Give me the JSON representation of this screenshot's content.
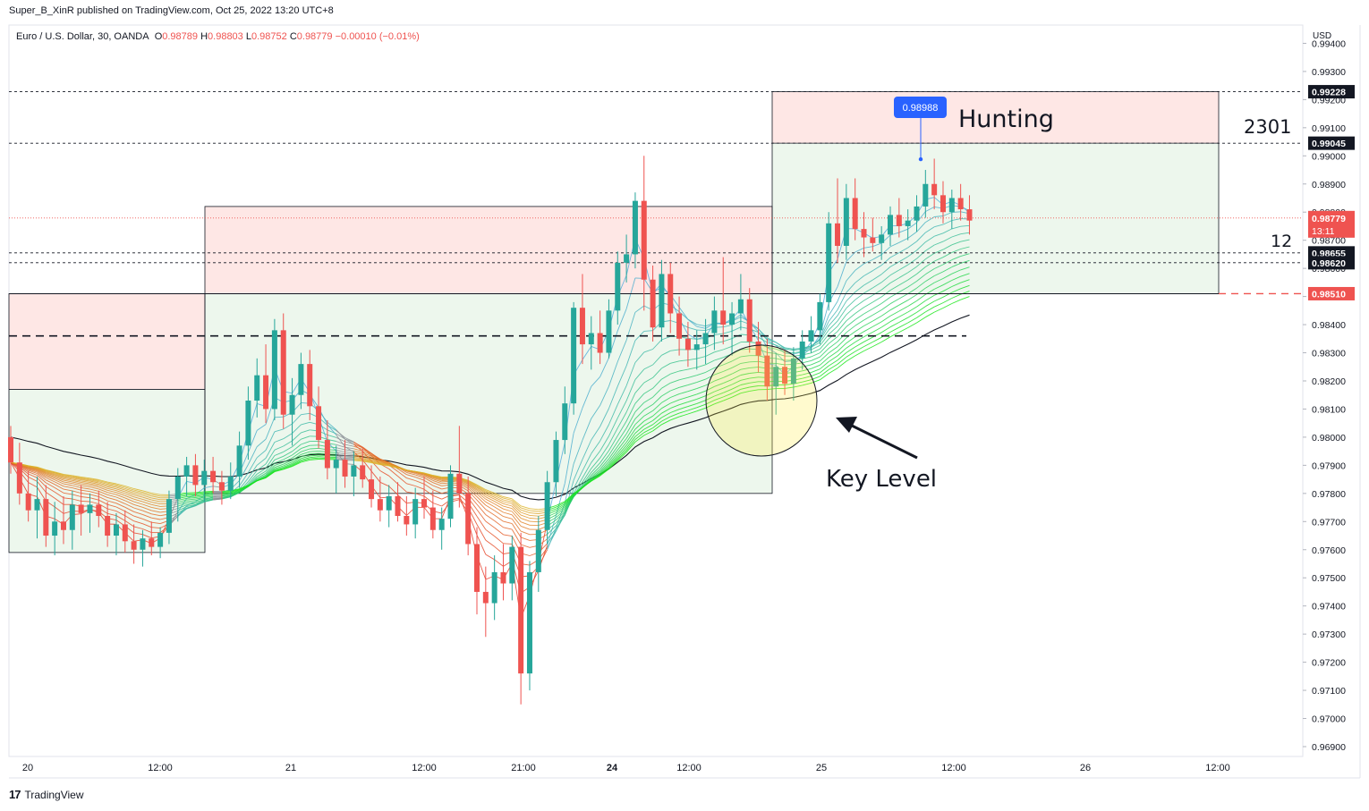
{
  "header": {
    "published_by": "Super_B_XinR published on TradingView.com, Oct 25, 2022 13:20 UTC+8"
  },
  "legend": {
    "symbol": "Euro / U.S. Dollar, 30, OANDA",
    "open_key": "O",
    "open": "0.98789",
    "high_key": "H",
    "high": "0.98803",
    "low_key": "L",
    "low": "0.98752",
    "close_key": "C",
    "close": "0.98779",
    "change": "−0.00010 (−0.01%)"
  },
  "currency": "USD",
  "footer": {
    "logo": "17",
    "brand": "TradingView"
  },
  "colors": {
    "bull": "#26a69a",
    "bear": "#ef5350",
    "price_tag": "#ef5350",
    "label_dark": "#131722",
    "callout": "#2962ff"
  },
  "chart_data": {
    "type": "candlestick",
    "y_axis": {
      "range": [
        0.96865,
        0.99465
      ],
      "ticks": [
        "0.96900",
        "0.97000",
        "0.97100",
        "0.97200",
        "0.97300",
        "0.97400",
        "0.97500",
        "0.97600",
        "0.97700",
        "0.97800",
        "0.97900",
        "0.98000",
        "0.98100",
        "0.98200",
        "0.98300",
        "0.98400",
        "0.98500",
        "0.98600",
        "0.98700",
        "0.98800",
        "0.98900",
        "0.99000",
        "0.99100",
        "0.99200",
        "0.99300",
        "0.99400"
      ]
    },
    "x_axis": {
      "ticks": [
        {
          "label": "20",
          "bold": false
        },
        {
          "label": "12:00",
          "bold": false
        },
        {
          "label": "21",
          "bold": false
        },
        {
          "label": "12:00",
          "bold": false
        },
        {
          "label": "21:00",
          "bold": false
        },
        {
          "label": "24",
          "bold": true
        },
        {
          "label": "12:00",
          "bold": false
        },
        {
          "label": "25",
          "bold": false
        },
        {
          "label": "12:00",
          "bold": false
        },
        {
          "label": "26",
          "bold": false
        },
        {
          "label": "12:00",
          "bold": false
        }
      ]
    },
    "price_labels": [
      {
        "value": "0.99228",
        "style": "dark"
      },
      {
        "value": "0.99045",
        "style": "dark"
      },
      {
        "value": "0.98779",
        "style": "red",
        "sub": "13:11"
      },
      {
        "value": "0.98655",
        "style": "dark"
      },
      {
        "value": "0.98620",
        "style": "dark"
      },
      {
        "value": "0.98510",
        "style": "red"
      }
    ],
    "levels": [
      {
        "price": 0.99228,
        "style": "dotted"
      },
      {
        "price": 0.99045,
        "style": "dotted"
      },
      {
        "price": 0.98655,
        "style": "dotted"
      },
      {
        "price": 0.9862,
        "style": "dotted"
      },
      {
        "price": 0.9851,
        "style": "dashed-red"
      },
      {
        "price": 0.9836,
        "style": "dashed-black"
      }
    ],
    "zones": [
      {
        "top": 0.9851,
        "mid": 0.9817,
        "bottom": 0.9759
      },
      {
        "top": 0.9882,
        "mid": 0.9851,
        "bottom": 0.978
      },
      {
        "top": 0.99228,
        "mid": 0.99045,
        "bottom": 0.9851
      }
    ],
    "callout_price": "0.98988",
    "annotations": [
      {
        "text": "Hunting"
      },
      {
        "text": "2301"
      },
      {
        "text": "12"
      },
      {
        "text": "Key Level"
      }
    ],
    "candles": [
      [
        0.98,
        0.9804,
        0.9787,
        0.9791
      ],
      [
        0.9791,
        0.9798,
        0.9776,
        0.978
      ],
      [
        0.978,
        0.9788,
        0.977,
        0.9774
      ],
      [
        0.9774,
        0.9786,
        0.9764,
        0.9778
      ],
      [
        0.9778,
        0.9783,
        0.9761,
        0.9765
      ],
      [
        0.9765,
        0.9777,
        0.9758,
        0.977
      ],
      [
        0.977,
        0.9779,
        0.9762,
        0.9767
      ],
      [
        0.9767,
        0.9781,
        0.976,
        0.9776
      ],
      [
        0.9776,
        0.9783,
        0.9765,
        0.9773
      ],
      [
        0.9773,
        0.978,
        0.9766,
        0.9776
      ],
      [
        0.9776,
        0.9781,
        0.9768,
        0.9772
      ],
      [
        0.9772,
        0.9777,
        0.9761,
        0.9765
      ],
      [
        0.9765,
        0.9773,
        0.9758,
        0.9769
      ],
      [
        0.9769,
        0.9774,
        0.9759,
        0.9763
      ],
      [
        0.9763,
        0.9769,
        0.9755,
        0.976
      ],
      [
        0.976,
        0.9767,
        0.9754,
        0.9764
      ],
      [
        0.9764,
        0.977,
        0.9758,
        0.9761
      ],
      [
        0.9761,
        0.9768,
        0.9757,
        0.9766
      ],
      [
        0.9766,
        0.9781,
        0.9762,
        0.9778
      ],
      [
        0.9778,
        0.9789,
        0.977,
        0.9786
      ],
      [
        0.9786,
        0.9793,
        0.9779,
        0.979
      ],
      [
        0.979,
        0.9794,
        0.9779,
        0.9783
      ],
      [
        0.9783,
        0.9792,
        0.9777,
        0.9788
      ],
      [
        0.9788,
        0.9793,
        0.978,
        0.9784
      ],
      [
        0.9784,
        0.9788,
        0.9776,
        0.9781
      ],
      [
        0.9781,
        0.9791,
        0.9778,
        0.9786
      ],
      [
        0.9786,
        0.9802,
        0.9782,
        0.9797
      ],
      [
        0.9797,
        0.9818,
        0.9792,
        0.9813
      ],
      [
        0.9813,
        0.9828,
        0.9807,
        0.9822
      ],
      [
        0.9822,
        0.9833,
        0.9805,
        0.981
      ],
      [
        0.981,
        0.9842,
        0.9806,
        0.9838
      ],
      [
        0.9838,
        0.9844,
        0.9803,
        0.9808
      ],
      [
        0.9808,
        0.9821,
        0.9797,
        0.9815
      ],
      [
        0.9815,
        0.983,
        0.981,
        0.9826
      ],
      [
        0.9826,
        0.9831,
        0.9806,
        0.9811
      ],
      [
        0.9811,
        0.9818,
        0.9796,
        0.9799
      ],
      [
        0.9799,
        0.9806,
        0.9785,
        0.9789
      ],
      [
        0.9789,
        0.9797,
        0.978,
        0.9792
      ],
      [
        0.9792,
        0.9799,
        0.9782,
        0.9786
      ],
      [
        0.9786,
        0.9795,
        0.9779,
        0.979
      ],
      [
        0.979,
        0.9796,
        0.9782,
        0.9785
      ],
      [
        0.9785,
        0.979,
        0.9775,
        0.9778
      ],
      [
        0.9778,
        0.9786,
        0.977,
        0.9774
      ],
      [
        0.9774,
        0.9783,
        0.9768,
        0.9779
      ],
      [
        0.9779,
        0.9784,
        0.977,
        0.9772
      ],
      [
        0.9772,
        0.9779,
        0.9765,
        0.9769
      ],
      [
        0.9769,
        0.9782,
        0.9764,
        0.9778
      ],
      [
        0.9778,
        0.9786,
        0.9771,
        0.9775
      ],
      [
        0.9775,
        0.9781,
        0.9764,
        0.9767
      ],
      [
        0.9767,
        0.9775,
        0.976,
        0.9771
      ],
      [
        0.9771,
        0.979,
        0.9768,
        0.9787
      ],
      [
        0.9787,
        0.9804,
        0.9775,
        0.978
      ],
      [
        0.978,
        0.9786,
        0.9758,
        0.9762
      ],
      [
        0.9762,
        0.9768,
        0.9737,
        0.9745
      ],
      [
        0.9745,
        0.9754,
        0.9729,
        0.9741
      ],
      [
        0.9741,
        0.9758,
        0.9735,
        0.9752
      ],
      [
        0.9752,
        0.9762,
        0.9742,
        0.9748
      ],
      [
        0.9748,
        0.9765,
        0.9742,
        0.9761
      ],
      [
        0.9761,
        0.9766,
        0.9705,
        0.9716
      ],
      [
        0.9716,
        0.9756,
        0.971,
        0.9752
      ],
      [
        0.9752,
        0.9772,
        0.9745,
        0.9767
      ],
      [
        0.9767,
        0.9788,
        0.9762,
        0.9784
      ],
      [
        0.9784,
        0.9802,
        0.9779,
        0.9799
      ],
      [
        0.9799,
        0.9818,
        0.9794,
        0.9812
      ],
      [
        0.9812,
        0.9848,
        0.9808,
        0.9846
      ],
      [
        0.9846,
        0.9858,
        0.9826,
        0.9833
      ],
      [
        0.9833,
        0.9843,
        0.9824,
        0.9837
      ],
      [
        0.9837,
        0.9845,
        0.9826,
        0.983
      ],
      [
        0.983,
        0.9849,
        0.9828,
        0.9845
      ],
      [
        0.9845,
        0.9866,
        0.984,
        0.9862
      ],
      [
        0.9862,
        0.9872,
        0.9855,
        0.9865
      ],
      [
        0.9865,
        0.9887,
        0.986,
        0.9884
      ],
      [
        0.9884,
        0.99,
        0.9845,
        0.9856
      ],
      [
        0.9856,
        0.9861,
        0.9834,
        0.9839
      ],
      [
        0.9839,
        0.9863,
        0.9834,
        0.9858
      ],
      [
        0.9858,
        0.9862,
        0.9837,
        0.9844
      ],
      [
        0.9844,
        0.985,
        0.9829,
        0.9835
      ],
      [
        0.9835,
        0.9841,
        0.9825,
        0.9831
      ],
      [
        0.9831,
        0.9838,
        0.9824,
        0.9833
      ],
      [
        0.9833,
        0.9842,
        0.9826,
        0.9837
      ],
      [
        0.9837,
        0.985,
        0.9831,
        0.9845
      ],
      [
        0.9845,
        0.9864,
        0.9833,
        0.984
      ],
      [
        0.984,
        0.9848,
        0.9829,
        0.9844
      ],
      [
        0.9844,
        0.9858,
        0.9838,
        0.9849
      ],
      [
        0.9849,
        0.9853,
        0.983,
        0.9834
      ],
      [
        0.9834,
        0.9841,
        0.9823,
        0.9829
      ],
      [
        0.9829,
        0.9835,
        0.9813,
        0.9818
      ],
      [
        0.9818,
        0.983,
        0.9808,
        0.9825
      ],
      [
        0.9825,
        0.9831,
        0.9815,
        0.9819
      ],
      [
        0.9819,
        0.9832,
        0.9813,
        0.9828
      ],
      [
        0.9828,
        0.9838,
        0.9824,
        0.9834
      ],
      [
        0.9834,
        0.9843,
        0.983,
        0.9838
      ],
      [
        0.9838,
        0.9851,
        0.9833,
        0.9848
      ],
      [
        0.9848,
        0.988,
        0.9845,
        0.9876
      ],
      [
        0.9876,
        0.9892,
        0.9862,
        0.9868
      ],
      [
        0.9868,
        0.989,
        0.9863,
        0.9885
      ],
      [
        0.9885,
        0.9892,
        0.987,
        0.9874
      ],
      [
        0.9874,
        0.988,
        0.9864,
        0.9871
      ],
      [
        0.9871,
        0.9878,
        0.9866,
        0.9869
      ],
      [
        0.9869,
        0.9875,
        0.9863,
        0.9872
      ],
      [
        0.9872,
        0.9882,
        0.9868,
        0.9879
      ],
      [
        0.9879,
        0.9885,
        0.9871,
        0.9875
      ],
      [
        0.9875,
        0.9881,
        0.987,
        0.9877
      ],
      [
        0.9877,
        0.9886,
        0.9873,
        0.9882
      ],
      [
        0.9882,
        0.9895,
        0.9878,
        0.989
      ],
      [
        0.989,
        0.9899,
        0.9881,
        0.9886
      ],
      [
        0.9886,
        0.9891,
        0.9876,
        0.988
      ],
      [
        0.988,
        0.9888,
        0.9874,
        0.9885
      ],
      [
        0.9885,
        0.989,
        0.9877,
        0.9881
      ],
      [
        0.9881,
        0.9886,
        0.9872,
        0.9877
      ]
    ]
  }
}
